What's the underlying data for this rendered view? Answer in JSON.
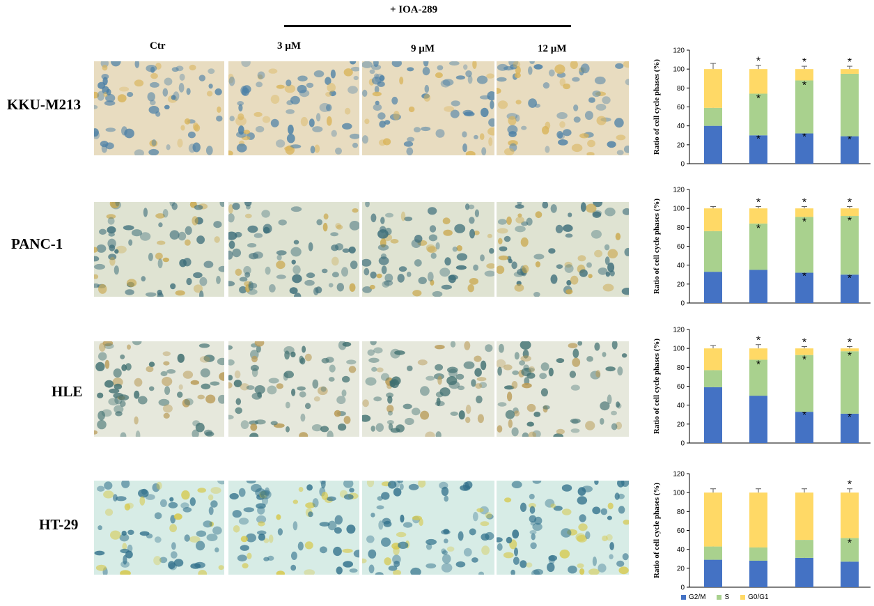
{
  "header": {
    "treatment_label": "+ IOA-289",
    "columns": [
      "Ctr",
      "3 µM",
      "9 µM",
      "12 µM"
    ]
  },
  "rows": [
    {
      "label": "KKU-M213",
      "tint": "#e8dcc0",
      "cell_color": "#4a7fa6",
      "accent": "#d9b45a"
    },
    {
      "label": "PANC-1",
      "tint": "#dfe3d2",
      "cell_color": "#3d6e7a",
      "accent": "#c9a64a"
    },
    {
      "label": "HLE",
      "tint": "#e6e8dc",
      "cell_color": "#3f6f70",
      "accent": "#b89a55"
    },
    {
      "label": "HT-29",
      "tint": "#d7ece6",
      "cell_color": "#2f6f8a",
      "accent": "#d6c84a"
    }
  ],
  "chart_data": [
    {
      "type": "bar",
      "stacked": true,
      "categories": [
        "ctr",
        "3 µM",
        "9 µM",
        "12 µM"
      ],
      "series": [
        {
          "name": "G2/M",
          "values": [
            40,
            30,
            32,
            29
          ]
        },
        {
          "name": "S",
          "values": [
            19,
            44,
            56,
            66
          ]
        },
        {
          "name": "G0/G1",
          "values": [
            41,
            26,
            12,
            5
          ]
        }
      ],
      "errors": [
        [
          5,
          2,
          3,
          2
        ],
        [
          4,
          6,
          2,
          1
        ],
        [
          6,
          4,
          3,
          3
        ]
      ],
      "stars": [
        [
          false,
          true,
          true,
          true
        ],
        [
          false,
          true,
          true,
          false
        ],
        [
          false,
          true,
          true,
          true
        ]
      ],
      "ylabel": "Ratio of cell cycle phases (%)",
      "yticks": [
        "0",
        "20",
        "40",
        "60",
        "80",
        "100",
        "120"
      ],
      "ylim": [
        0,
        120
      ],
      "show_xlabels": false
    },
    {
      "type": "bar",
      "stacked": true,
      "categories": [
        "ctr",
        "3 µM",
        "9 µM",
        "12 µM"
      ],
      "series": [
        {
          "name": "G2/M",
          "values": [
            33,
            35,
            32,
            30
          ]
        },
        {
          "name": "S",
          "values": [
            43,
            49,
            59,
            62
          ]
        },
        {
          "name": "G0/G1",
          "values": [
            24,
            16,
            9,
            8
          ]
        }
      ],
      "errors": [
        [
          2,
          3,
          1,
          5
        ],
        [
          2,
          3,
          2,
          2
        ],
        [
          2,
          2,
          2,
          2
        ]
      ],
      "stars": [
        [
          false,
          false,
          true,
          true
        ],
        [
          false,
          true,
          true,
          true
        ],
        [
          false,
          true,
          true,
          true
        ]
      ],
      "ylabel": "Ratio of cell cycle phases (%)",
      "yticks": [
        "0",
        "20",
        "40",
        "60",
        "80",
        "100",
        "120"
      ],
      "ylim": [
        0,
        120
      ],
      "show_xlabels": false
    },
    {
      "type": "bar",
      "stacked": true,
      "categories": [
        "ctr",
        "3 µM",
        "9 µM",
        "12 µM"
      ],
      "series": [
        {
          "name": "G2/M",
          "values": [
            59,
            50,
            33,
            31
          ]
        },
        {
          "name": "S",
          "values": [
            18,
            38,
            60,
            66
          ]
        },
        {
          "name": "G0/G1",
          "values": [
            23,
            12,
            7,
            3
          ]
        }
      ],
      "errors": [
        [
          6,
          3,
          3,
          3
        ],
        [
          3,
          1,
          1,
          1
        ],
        [
          3,
          4,
          2,
          2
        ]
      ],
      "stars": [
        [
          false,
          false,
          true,
          true
        ],
        [
          false,
          true,
          true,
          true
        ],
        [
          false,
          true,
          true,
          true
        ]
      ],
      "ylabel": "Ratio of cell cycle phases (%)",
      "yticks": [
        "0",
        "20",
        "40",
        "60",
        "80",
        "100",
        "120"
      ],
      "ylim": [
        0,
        120
      ],
      "show_xlabels": false
    },
    {
      "type": "bar",
      "stacked": true,
      "categories": [
        "ctr",
        "3 µM",
        "9 µM",
        "12 µM"
      ],
      "series": [
        {
          "name": "G2/M",
          "values": [
            29,
            28,
            31,
            27
          ]
        },
        {
          "name": "S",
          "values": [
            14,
            14,
            19,
            25
          ]
        },
        {
          "name": "G0/G1",
          "values": [
            57,
            58,
            50,
            48
          ]
        }
      ],
      "errors": [
        [
          2,
          2,
          4,
          2
        ],
        [
          3,
          1,
          1,
          2
        ],
        [
          4,
          4,
          4,
          4
        ]
      ],
      "stars": [
        [
          false,
          false,
          false,
          false
        ],
        [
          false,
          false,
          false,
          true
        ],
        [
          false,
          false,
          false,
          true
        ]
      ],
      "ylabel": "Ratio of cell cycle phases (%)",
      "yticks": [
        "0",
        "20",
        "40",
        "60",
        "80",
        "100",
        "120"
      ],
      "ylim": [
        0,
        120
      ],
      "show_xlabels": true
    }
  ],
  "legend": [
    {
      "label": "G2/M",
      "color": "#4472c4"
    },
    {
      "label": "S",
      "color": "#a9d18e"
    },
    {
      "label": "G0/G1",
      "color": "#ffd966"
    }
  ],
  "colors": {
    "G2/M": "#4472c4",
    "S": "#a9d18e",
    "G0/G1": "#ffd966",
    "axis": "#000000",
    "error": "#595959"
  },
  "star_symbol": "*"
}
